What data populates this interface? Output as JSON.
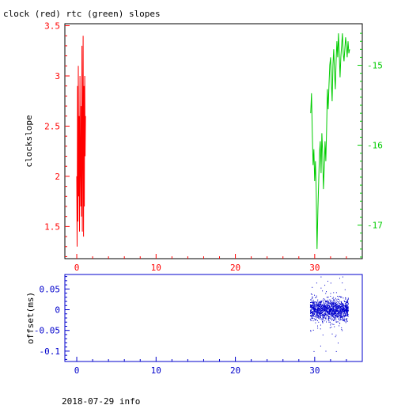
{
  "title": "clock (red) rtc (green) slopes",
  "footer": "2018-07-29 info",
  "colors": {
    "clock": "#ff0000",
    "rtc": "#00cc00",
    "offset": "#0000cc",
    "text": "#000000"
  },
  "chart_data": [
    {
      "type": "line",
      "title": "clock (red) rtc (green) slopes",
      "xlabel": "",
      "ylabel": "clockslope",
      "xlim": [
        -1.5,
        36
      ],
      "ylim": [
        1.18,
        3.52
      ],
      "xticks": [
        0,
        10,
        20,
        30
      ],
      "xtick_labels": [
        "0",
        "10",
        "20",
        "30"
      ],
      "yticks": [
        1.5,
        2,
        2.5,
        3,
        3.5
      ],
      "ytick_labels": [
        "1.5",
        "2",
        "2.5",
        "3",
        "3.5"
      ],
      "y2lim": [
        -17.42,
        -14.48
      ],
      "y2ticks": [
        -15,
        -16,
        -17
      ],
      "y2tick_labels": [
        "-15",
        "-16",
        "-17"
      ],
      "grid": false,
      "series": [
        {
          "color": "#ff0000",
          "axis": "left",
          "x": [
            0.0,
            0.05,
            0.1,
            0.15,
            0.2,
            0.25,
            0.3,
            0.35,
            0.4,
            0.45,
            0.5,
            0.55,
            0.6,
            0.65,
            0.7,
            0.75,
            0.8,
            0.85,
            0.9,
            0.95,
            1.0,
            1.05,
            1.1
          ],
          "y": [
            2.0,
            1.3,
            2.9,
            1.55,
            3.1,
            1.8,
            2.6,
            1.45,
            3.0,
            2.1,
            1.7,
            2.7,
            1.6,
            3.3,
            1.45,
            2.4,
            3.4,
            1.4,
            2.9,
            1.7,
            3.0,
            2.2,
            2.6
          ]
        },
        {
          "color": "#00cc00",
          "axis": "right",
          "x": [
            29.5,
            29.6,
            29.7,
            29.8,
            29.9,
            30.0,
            30.1,
            30.2,
            30.3,
            30.4,
            30.5,
            30.6,
            30.7,
            30.8,
            30.9,
            31.0,
            31.1,
            31.2,
            31.3,
            31.4,
            31.5,
            31.6,
            31.7,
            31.8,
            31.9,
            32.0,
            32.1,
            32.2,
            32.3,
            32.4,
            32.5,
            32.6,
            32.7,
            32.8,
            32.9,
            33.0,
            33.1,
            33.2,
            33.3,
            33.4,
            33.5,
            33.6,
            33.7,
            33.8,
            33.9,
            34.0,
            34.1,
            34.2,
            34.3,
            34.4
          ],
          "y": [
            -15.6,
            -15.35,
            -15.85,
            -16.25,
            -16.05,
            -16.45,
            -16.2,
            -16.6,
            -17.3,
            -16.8,
            -16.45,
            -16.1,
            -15.95,
            -16.35,
            -15.85,
            -16.1,
            -16.55,
            -16.3,
            -15.95,
            -16.2,
            -15.8,
            -15.3,
            -15.55,
            -15.25,
            -15.0,
            -14.9,
            -15.2,
            -15.45,
            -15.0,
            -14.8,
            -15.1,
            -15.3,
            -14.95,
            -14.7,
            -14.9,
            -14.6,
            -14.85,
            -15.15,
            -14.9,
            -14.75,
            -14.6,
            -14.85,
            -14.95,
            -14.8,
            -14.65,
            -14.75,
            -14.9,
            -14.7,
            -14.85,
            -14.8
          ]
        }
      ]
    },
    {
      "type": "scatter",
      "xlabel": "",
      "ylabel": "offset(ms)",
      "xlim": [
        -1.5,
        36
      ],
      "ylim": [
        -0.125,
        0.085
      ],
      "xticks": [
        0,
        10,
        20,
        30
      ],
      "xtick_labels": [
        "0",
        "10",
        "20",
        "30"
      ],
      "yticks": [
        0.05,
        0,
        -0.05,
        -0.1
      ],
      "ytick_labels": [
        "0.05",
        "0",
        "-0.05",
        "-0.1"
      ],
      "grid": false,
      "series": [
        {
          "color": "#0000cc",
          "x_range": [
            29.4,
            34.2
          ],
          "y_center": 0.0,
          "y_spread": 0.02,
          "y_extent": [
            -0.1,
            0.08
          ]
        }
      ]
    }
  ]
}
